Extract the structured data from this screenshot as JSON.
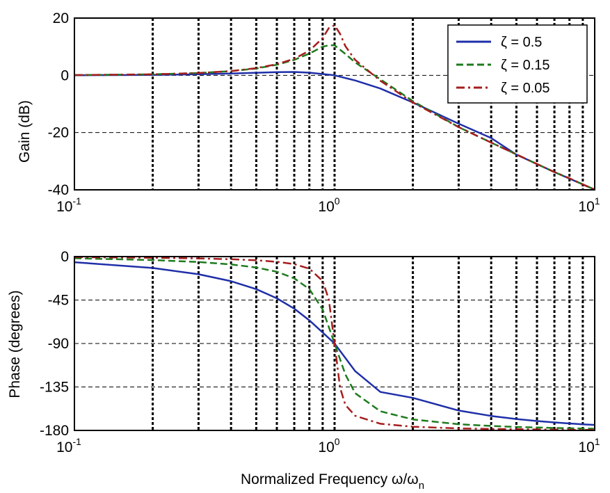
{
  "colors": {
    "series_1": "#1f2fa8",
    "series_2": "#1e7b1e",
    "series_3": "#a51d1d",
    "grid": "#000000",
    "background": "#ffffff"
  },
  "chart_data": [
    {
      "type": "line",
      "xscale": "log",
      "xlim": [
        0.1,
        10
      ],
      "ylim": [
        -40,
        20
      ],
      "x_ticks": [
        {
          "base": "10",
          "exp": "-1"
        },
        {
          "base": "10",
          "exp": "0"
        },
        {
          "base": "10",
          "exp": "1"
        }
      ],
      "y_ticks": [
        "20",
        "0",
        "-20",
        "-40"
      ],
      "y_tick_values": [
        20,
        0,
        -20,
        -40
      ],
      "ylabel": "Gain (dB)",
      "grid": true,
      "legend_position": "top-right",
      "series": [
        {
          "name": "ζ = 0.5",
          "style": "solid",
          "x": [
            0.1,
            0.2,
            0.3,
            0.4,
            0.5,
            0.6,
            0.7,
            0.8,
            0.9,
            1.0,
            1.2,
            1.5,
            2,
            3,
            4,
            5,
            6,
            7,
            8,
            9,
            10
          ],
          "y": [
            0.04,
            0.16,
            0.38,
            0.65,
            0.9,
            1.11,
            1.17,
            0.93,
            0.44,
            0.0,
            -1.8,
            -4.6,
            -9.5,
            -16.9,
            -21.9,
            -27.7,
            -31.0,
            -33.8,
            -36.1,
            -38.1,
            -39.9
          ]
        },
        {
          "name": "ζ = 0.15",
          "style": "dashed",
          "x": [
            0.1,
            0.2,
            0.3,
            0.4,
            0.5,
            0.6,
            0.7,
            0.8,
            0.9,
            0.95,
            1.0,
            1.1,
            1.2,
            1.5,
            2,
            3,
            4,
            5,
            6,
            7,
            8,
            9,
            10
          ],
          "y": [
            0.09,
            0.35,
            0.8,
            1.47,
            2.4,
            3.7,
            5.4,
            7.6,
            10.0,
            10.5,
            10.5,
            7.5,
            4.5,
            -1.4,
            -9.0,
            -18.1,
            -23.5,
            -27.6,
            -31.0,
            -33.8,
            -36.0,
            -38.1,
            -39.9
          ]
        },
        {
          "name": "ζ = 0.05",
          "style": "dashdot",
          "x": [
            0.1,
            0.2,
            0.3,
            0.4,
            0.5,
            0.6,
            0.7,
            0.8,
            0.9,
            0.95,
            1.0,
            1.05,
            1.1,
            1.2,
            1.5,
            2,
            3,
            4,
            5,
            6,
            7,
            8,
            9,
            10
          ],
          "y": [
            0.09,
            0.36,
            0.82,
            1.5,
            2.5,
            3.9,
            5.8,
            8.6,
            13.0,
            16.5,
            17.5,
            14.5,
            10.2,
            5.4,
            -1.9,
            -9.5,
            -18.1,
            -23.5,
            -27.6,
            -31.0,
            -33.8,
            -36.0,
            -38.1,
            -39.9
          ]
        }
      ]
    },
    {
      "type": "line",
      "xscale": "log",
      "xlim": [
        0.1,
        10
      ],
      "ylim": [
        -180,
        0
      ],
      "x_ticks": [
        {
          "base": "10",
          "exp": "-1"
        },
        {
          "base": "10",
          "exp": "0"
        },
        {
          "base": "10",
          "exp": "1"
        }
      ],
      "y_ticks": [
        "0",
        "-45",
        "-90",
        "-135",
        "-180"
      ],
      "y_tick_values": [
        0,
        -45,
        -90,
        -135,
        -180
      ],
      "ylabel": "Phase (degrees)",
      "xlabel": "Normalized Frequency ω/ω",
      "xlabel_sub": "n",
      "grid": true,
      "series": [
        {
          "name": "ζ = 0.5",
          "style": "solid",
          "x": [
            0.1,
            0.2,
            0.3,
            0.4,
            0.5,
            0.6,
            0.7,
            0.8,
            0.9,
            1.0,
            1.2,
            1.5,
            2,
            3,
            4,
            5,
            6,
            7,
            8,
            9,
            10
          ],
          "y": [
            -5.8,
            -11.8,
            -18.3,
            -25.5,
            -33.7,
            -43.2,
            -53.9,
            -66.0,
            -78.6,
            -90.0,
            -118.6,
            -140.2,
            -146.3,
            -159.4,
            -165.0,
            -168.2,
            -170.3,
            -171.7,
            -172.8,
            -173.7,
            -174.3
          ]
        },
        {
          "name": "ζ = 0.15",
          "style": "dashed",
          "x": [
            0.1,
            0.2,
            0.3,
            0.4,
            0.5,
            0.6,
            0.7,
            0.8,
            0.9,
            1.0,
            1.1,
            1.2,
            1.5,
            2,
            3,
            4,
            5,
            6,
            7,
            8,
            9,
            10
          ],
          "y": [
            -1.7,
            -3.6,
            -5.6,
            -8.1,
            -11.3,
            -15.7,
            -22.5,
            -33.7,
            -54.8,
            -90.0,
            -122.0,
            -141.4,
            -160.2,
            -168.6,
            -173.6,
            -175.4,
            -176.4,
            -177.0,
            -177.5,
            -177.8,
            -178.0,
            -178.3
          ]
        },
        {
          "name": "ζ = 0.05",
          "style": "dashdot",
          "x": [
            0.1,
            0.2,
            0.3,
            0.4,
            0.5,
            0.6,
            0.7,
            0.8,
            0.9,
            0.95,
            1.0,
            1.05,
            1.1,
            1.2,
            1.5,
            2,
            3,
            4,
            5,
            6,
            7,
            8,
            9,
            10
          ],
          "y": [
            -0.6,
            -1.2,
            -1.9,
            -2.7,
            -3.8,
            -5.4,
            -7.8,
            -12.5,
            -25.3,
            -44.3,
            -90.0,
            -135.7,
            -153.6,
            -164.8,
            -173.1,
            -176.2,
            -177.9,
            -178.5,
            -178.8,
            -179.0,
            -179.2,
            -179.3,
            -179.4,
            -179.4
          ]
        }
      ]
    }
  ]
}
